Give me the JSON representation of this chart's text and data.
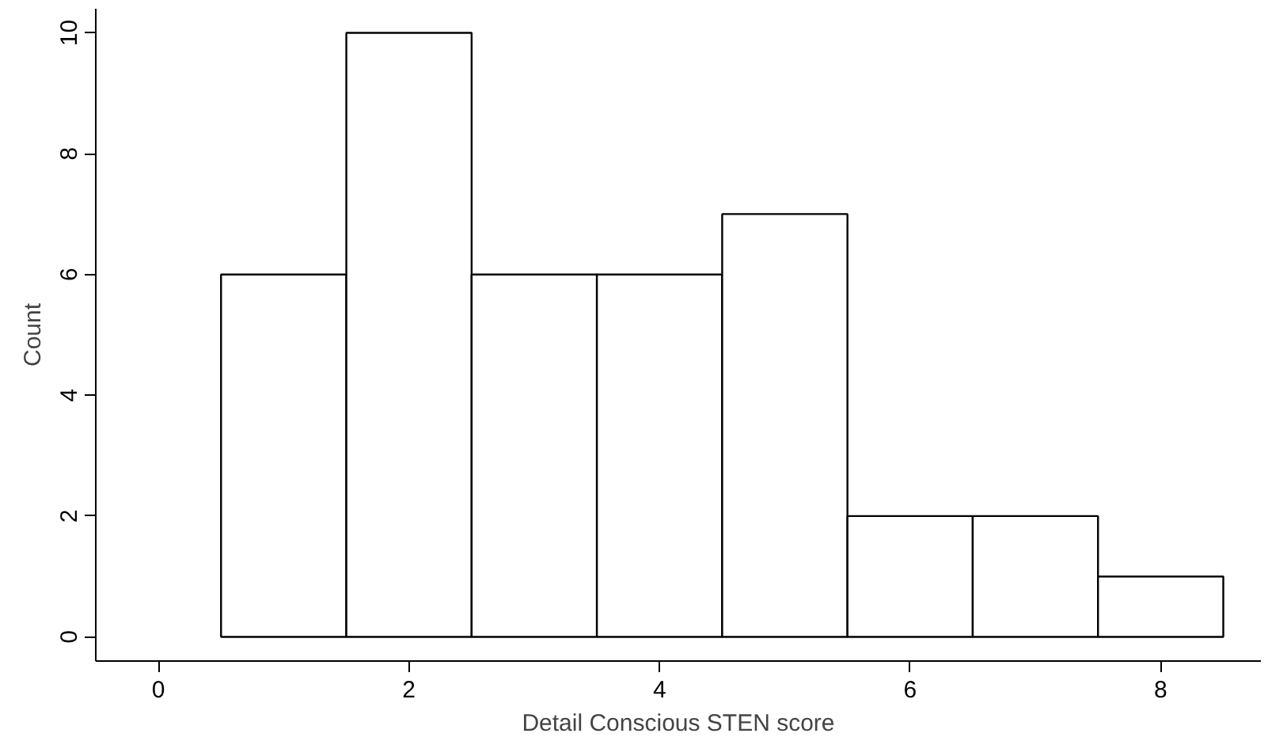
{
  "chart_data": {
    "type": "histogram",
    "xlabel": "Detail Conscious STEN score",
    "ylabel": "Count",
    "bins": [
      0.5,
      1.5,
      2.5,
      3.5,
      4.5,
      5.5,
      6.5,
      7.5,
      8.5
    ],
    "values": [
      6,
      10,
      6,
      6,
      7,
      2,
      2,
      1
    ],
    "color": "#ffffff",
    "xlim": [
      -0.5,
      8.8
    ],
    "ylim": [
      -0.4,
      10.4
    ],
    "xticks": [
      0,
      2,
      4,
      6,
      8
    ],
    "yticks": [
      0,
      2,
      4,
      6,
      8,
      10
    ],
    "grid": false
  }
}
